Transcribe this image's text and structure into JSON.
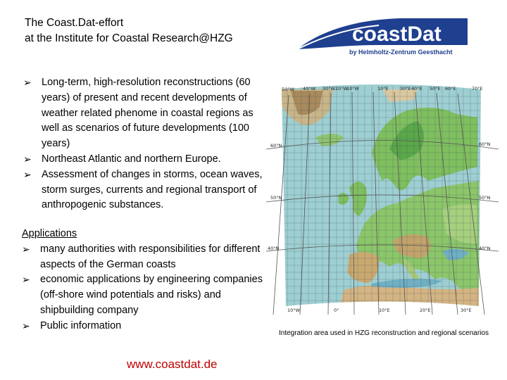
{
  "title": {
    "line1": "The Coast.Dat-effort",
    "line2": "at the Institute for Coastal Research@HZG"
  },
  "logo": {
    "main": "coastDat",
    "sub": "by Helmholtz-Zentrum Geesthacht",
    "color": "#1f3f8f"
  },
  "bullets": [
    "Long-term, high-resolution reconstructions (60 years) of present and recent developments  of weather related phenome in coastal regions as well as scenarios of future developments (100 years)",
    "Northeast Atlantic and northern Europe.",
    "Assessment of changes in storms, ocean waves, storm surges, currents and regional transport of anthropogenic substances."
  ],
  "applications": {
    "heading": "Applications",
    "items": [
      "many authorities with responsibilities for different aspects of the German coasts",
      "economic applications by engineering companies (off-shore wind potentials and risks) and shipbuilding company",
      "Public information"
    ]
  },
  "url": "www.coastdat.de",
  "map": {
    "top_labels": [
      "50°W",
      "40°W",
      "30°W",
      "20°W",
      "10°W",
      "10°E",
      "30°E",
      "40°E",
      "50°E",
      "60°E",
      "70°E"
    ],
    "bottom_labels": [
      "10°W",
      "0°",
      "10°E",
      "20°E",
      "30°E"
    ],
    "left_labels": [
      "60°N",
      "50°N",
      "40°N"
    ],
    "right_labels": [
      "60°N",
      "50°N",
      "40°N"
    ]
  },
  "caption": "Integration area used in HZG reconstruction and regional scenarios"
}
